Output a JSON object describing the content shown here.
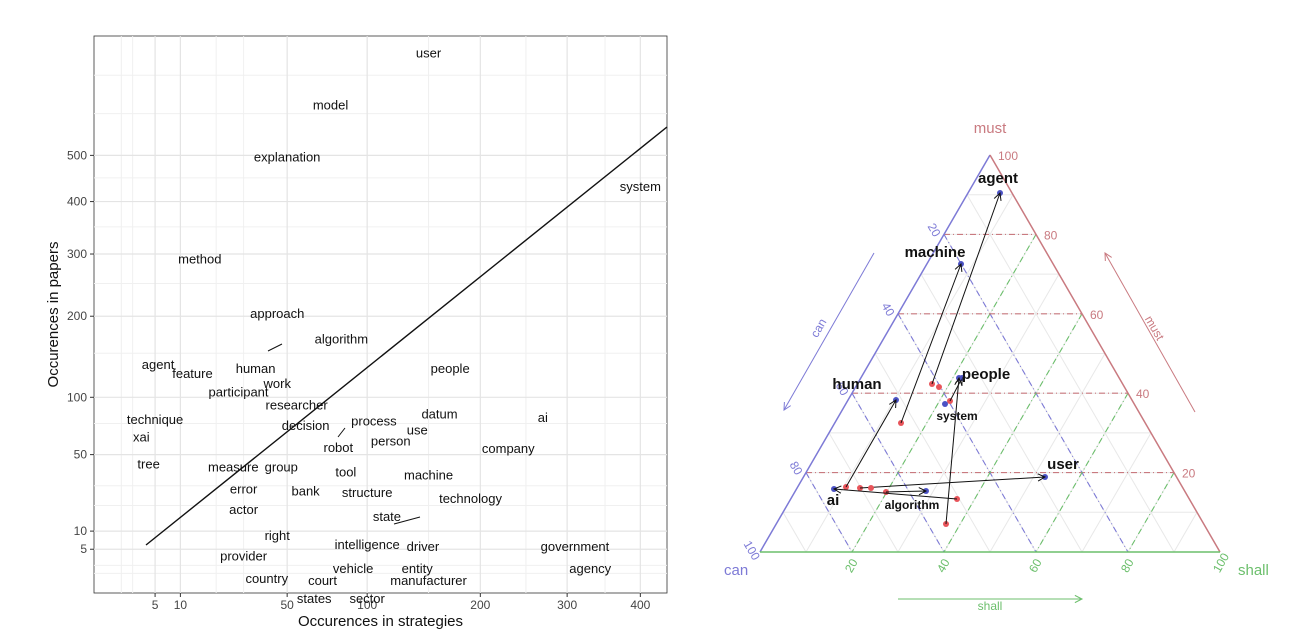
{
  "chart_data": [
    {
      "type": "scatter",
      "xlabel": "Occurences in strategies",
      "ylabel": "Occurences in papers",
      "x_ticks": [
        5,
        10,
        50,
        100,
        200,
        300,
        400
      ],
      "y_ticks": [
        5,
        10,
        50,
        100,
        200,
        300,
        400,
        500
      ],
      "grid": true,
      "diagonal_line": true,
      "words": [
        {
          "label": "user",
          "x": 150,
          "y": 760
        },
        {
          "label": "model",
          "x": 75,
          "y": 620
        },
        {
          "label": "explanation",
          "x": 50,
          "y": 495
        },
        {
          "label": "system",
          "x": 400,
          "y": 430
        },
        {
          "label": "method",
          "x": 15,
          "y": 290
        },
        {
          "label": "approach",
          "x": 45,
          "y": 203
        },
        {
          "label": "algorithm",
          "x": 82,
          "y": 168
        },
        {
          "label": "agent",
          "x": 5.5,
          "y": 136
        },
        {
          "label": "feature",
          "x": 13,
          "y": 125
        },
        {
          "label": "human",
          "x": 35,
          "y": 131
        },
        {
          "label": "people",
          "x": 170,
          "y": 131
        },
        {
          "label": "work",
          "x": 45,
          "y": 114
        },
        {
          "label": "participant",
          "x": 28,
          "y": 105
        },
        {
          "label": "researcher",
          "x": 55,
          "y": 92
        },
        {
          "label": "datum",
          "x": 160,
          "y": 83
        },
        {
          "label": "ai",
          "x": 270,
          "y": 80
        },
        {
          "label": "technique",
          "x": 5,
          "y": 78
        },
        {
          "label": "process",
          "x": 105,
          "y": 77
        },
        {
          "label": "decision",
          "x": 60,
          "y": 73
        },
        {
          "label": "use",
          "x": 140,
          "y": 69
        },
        {
          "label": "xai",
          "x": 3,
          "y": 63
        },
        {
          "label": "person",
          "x": 118,
          "y": 60
        },
        {
          "label": "robot",
          "x": 80,
          "y": 55
        },
        {
          "label": "company",
          "x": 230,
          "y": 54
        },
        {
          "label": "tree",
          "x": 4,
          "y": 43
        },
        {
          "label": "measure",
          "x": 26,
          "y": 41
        },
        {
          "label": "group",
          "x": 47,
          "y": 41
        },
        {
          "label": "tool",
          "x": 85,
          "y": 38
        },
        {
          "label": "machine",
          "x": 150,
          "y": 36
        },
        {
          "label": "error",
          "x": 30,
          "y": 28
        },
        {
          "label": "bank",
          "x": 60,
          "y": 27
        },
        {
          "label": "structure",
          "x": 100,
          "y": 26
        },
        {
          "label": "technology",
          "x": 190,
          "y": 23
        },
        {
          "label": "actor",
          "x": 30,
          "y": 18
        },
        {
          "label": "state",
          "x": 115,
          "y": 15
        },
        {
          "label": "right",
          "x": 45,
          "y": 8.5
        },
        {
          "label": "intelligence",
          "x": 100,
          "y": 6
        },
        {
          "label": "driver",
          "x": 145,
          "y": 5.5
        },
        {
          "label": "government",
          "x": 310,
          "y": 5.5
        },
        {
          "label": "provider",
          "x": 30,
          "y": 3.5
        },
        {
          "label": "vehicle",
          "x": 90,
          "y": 1.5
        },
        {
          "label": "entity",
          "x": 140,
          "y": 1.5
        },
        {
          "label": "agency",
          "x": 330,
          "y": 1.5
        },
        {
          "label": "country",
          "x": 40,
          "y": -2
        },
        {
          "label": "court",
          "x": 70,
          "y": -2.5
        },
        {
          "label": "manufacturer",
          "x": 150,
          "y": -2.5
        },
        {
          "label": "states",
          "x": 65,
          "y": -7
        },
        {
          "label": "sector",
          "x": 100,
          "y": -7
        }
      ]
    },
    {
      "type": "ternary",
      "axes": {
        "top": "must",
        "left": "can",
        "right": "shall"
      },
      "axis_arrow_labels": {
        "can": "can",
        "must": "must",
        "shall": "shall"
      },
      "ticks": [
        20,
        40,
        60,
        80,
        100
      ],
      "bold_labels": [
        "agent",
        "machine",
        "human",
        "people",
        "user",
        "ai"
      ],
      "small_labels": [
        "system",
        "algorithm"
      ],
      "colors": {
        "must": "#c97a80",
        "can": "#7d7ad6",
        "shall": "#6cbf6c",
        "point": "#e8545a",
        "point_blue": "#4b52c4"
      }
    }
  ]
}
